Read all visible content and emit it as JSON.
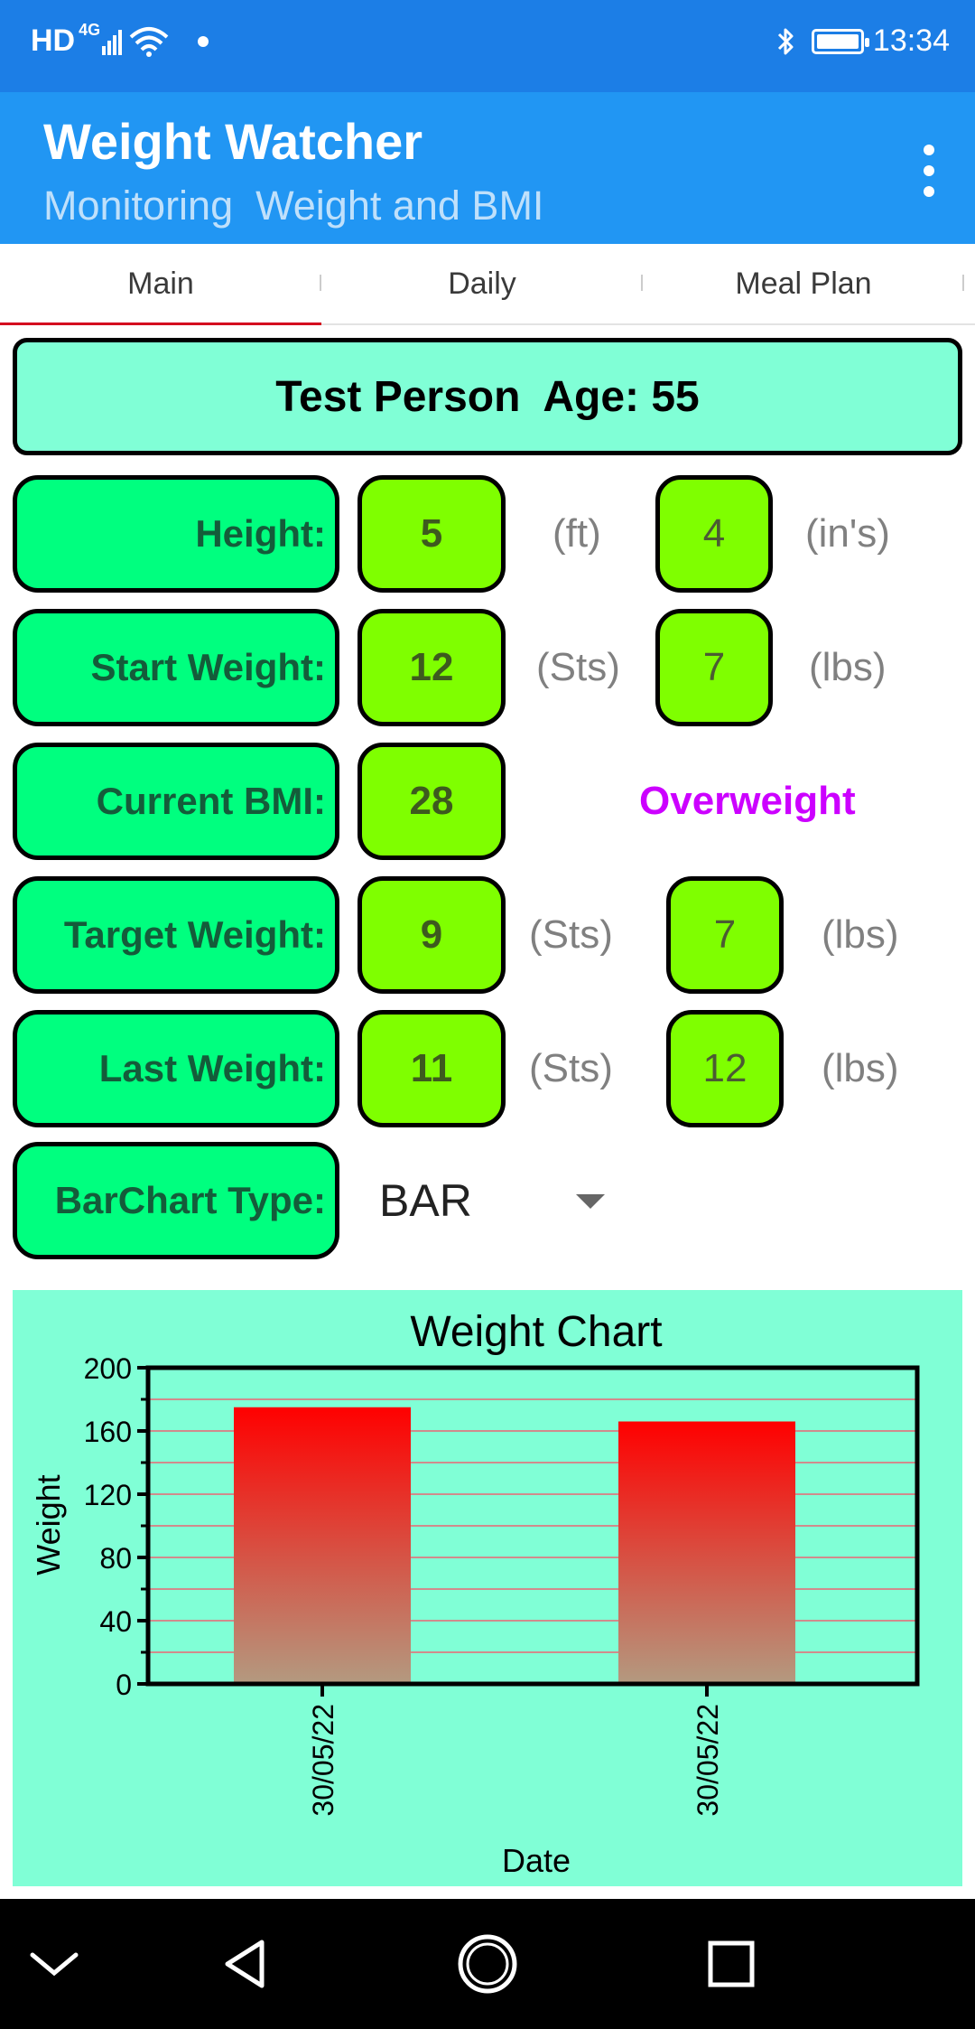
{
  "status_bar": {
    "network": "HD",
    "network_type": "4G",
    "time": "13:34"
  },
  "app": {
    "title": "Weight Watcher",
    "subtitle": "Monitoring  Weight and BMI"
  },
  "tabs": [
    {
      "label": "Main",
      "active": true
    },
    {
      "label": "Daily",
      "active": false
    },
    {
      "label": "Meal Plan",
      "active": false
    }
  ],
  "person": {
    "header": "Test Person  Age: 55"
  },
  "height": {
    "label": "Height:",
    "feet": "5",
    "feet_unit": "(ft)",
    "inches": "4",
    "inches_unit": "(in's)"
  },
  "start_weight": {
    "label": "Start Weight:",
    "stones": "12",
    "stones_unit": "(Sts)",
    "pounds": "7",
    "pounds_unit": "(lbs)"
  },
  "current_bmi": {
    "label": "Current BMI:",
    "value": "28",
    "status": "Overweight"
  },
  "target_weight": {
    "label": "Target Weight:",
    "stones": "9",
    "stones_unit": "(Sts)",
    "pounds": "7",
    "pounds_unit": "(lbs)"
  },
  "last_weight": {
    "label": "Last Weight:",
    "stones": "11",
    "stones_unit": "(Sts)",
    "pounds": "12",
    "pounds_unit": "(lbs)"
  },
  "barchart_type": {
    "label": "BarChart Type:",
    "selected": "BAR"
  },
  "colors": {
    "status_bar": "#1c7ee6",
    "app_bar": "#2196f3",
    "label_box": "#00ff7f",
    "value_box": "#7fff00",
    "card": "#80ffd6",
    "bmi_status": "#cc00ff",
    "bar_top": "#ff0000",
    "bar_bottom": "#b39a80"
  },
  "chart_data": {
    "type": "bar",
    "title": "Weight Chart",
    "xlabel": "Date",
    "ylabel": "Weight",
    "categories": [
      "30/05/22",
      "30/05/22"
    ],
    "values": [
      175,
      166
    ],
    "ylim": [
      0,
      200
    ],
    "yticks": [
      0,
      40,
      80,
      120,
      160,
      200
    ],
    "grid": true,
    "legend": "none"
  }
}
